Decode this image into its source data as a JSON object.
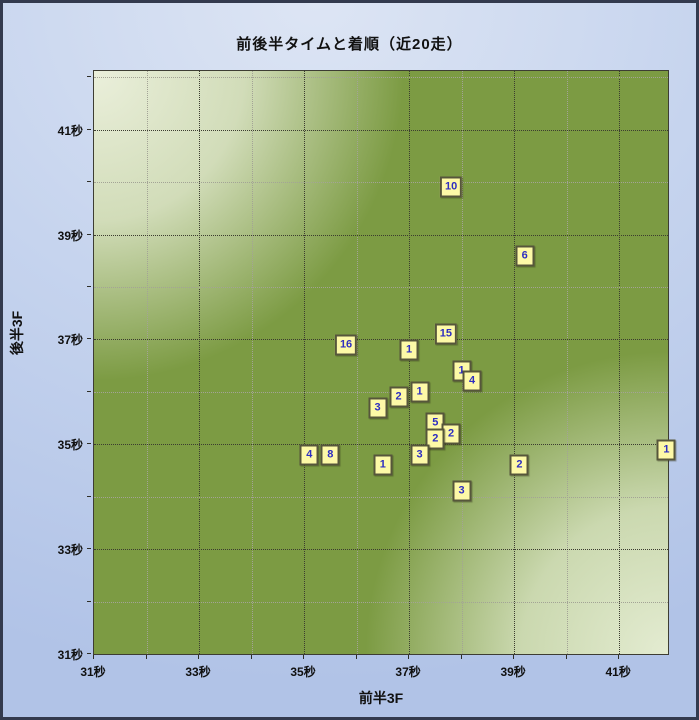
{
  "title": "前後半タイムと着順（近20走）",
  "axes": {
    "x_title": "前半3F",
    "y_title": "後半3F",
    "unit_suffix": "秒"
  },
  "colors": {
    "background_blue": "#c6d4ee",
    "plot_green_dark": "#7c9b43",
    "plot_green_light": "#eef2e0",
    "marker_fill": "#fdf9a7",
    "marker_border": "#56563b",
    "marker_text": "#2e2ec0",
    "frame_border": "#333a4e"
  },
  "chart_data": {
    "type": "scatter",
    "title": "前後半タイムと着順（近20走）",
    "xlabel": "前半3F",
    "ylabel": "後半3F",
    "xlim": [
      31,
      41.93
    ],
    "ylim": [
      31,
      42.12
    ],
    "grid": "dotted, minor every 1s, major every 2s",
    "legend": "none",
    "x_major_ticks": [
      31,
      33,
      35,
      37,
      39,
      41
    ],
    "y_major_ticks": [
      31,
      33,
      35,
      37,
      39,
      41
    ],
    "x_tick_labels": [
      "31秒",
      "33秒",
      "35秒",
      "37秒",
      "39秒",
      "41秒"
    ],
    "y_tick_labels": [
      "31秒",
      "33秒",
      "35秒",
      "37秒",
      "39秒",
      "41秒"
    ],
    "minor_tick_step": 1,
    "points": [
      {
        "finish": "10",
        "x": 37.8,
        "y": 39.9
      },
      {
        "finish": "6",
        "x": 39.2,
        "y": 38.6
      },
      {
        "finish": "15",
        "x": 37.7,
        "y": 37.1
      },
      {
        "finish": "16",
        "x": 35.8,
        "y": 36.9
      },
      {
        "finish": "1",
        "x": 37.0,
        "y": 36.8
      },
      {
        "finish": "1",
        "x": 38.0,
        "y": 36.4
      },
      {
        "finish": "4",
        "x": 38.2,
        "y": 36.2
      },
      {
        "finish": "2",
        "x": 36.8,
        "y": 35.9
      },
      {
        "finish": "1",
        "x": 37.2,
        "y": 36.0
      },
      {
        "finish": "3",
        "x": 36.4,
        "y": 35.7
      },
      {
        "finish": "5",
        "x": 37.5,
        "y": 35.4
      },
      {
        "finish": "2",
        "x": 37.8,
        "y": 35.2
      },
      {
        "finish": "2",
        "x": 37.5,
        "y": 35.1
      },
      {
        "finish": "4",
        "x": 35.1,
        "y": 34.8
      },
      {
        "finish": "8",
        "x": 35.5,
        "y": 34.8
      },
      {
        "finish": "3",
        "x": 37.2,
        "y": 34.8
      },
      {
        "finish": "1",
        "x": 36.5,
        "y": 34.6
      },
      {
        "finish": "2",
        "x": 39.1,
        "y": 34.6
      },
      {
        "finish": "3",
        "x": 38.0,
        "y": 34.1
      },
      {
        "finish": "1",
        "x": 41.9,
        "y": 34.9
      }
    ]
  }
}
